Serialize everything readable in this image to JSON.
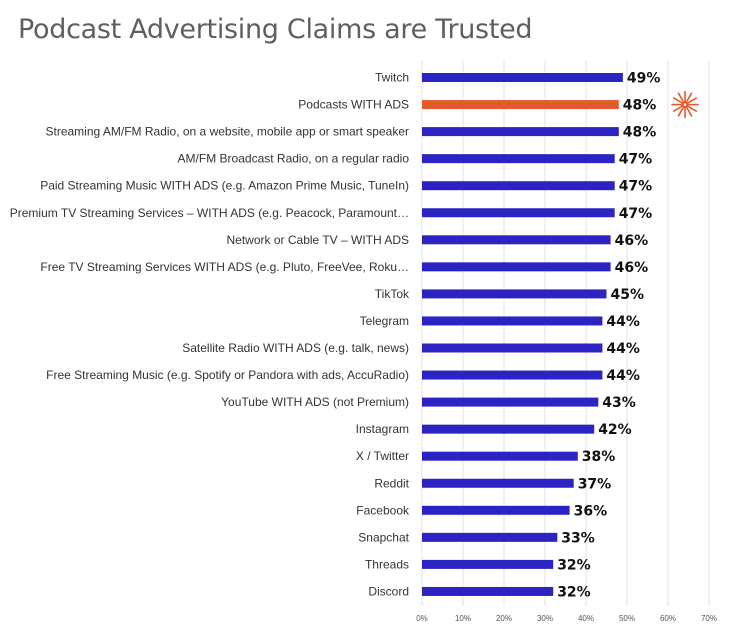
{
  "chart_data": {
    "type": "bar",
    "orientation": "horizontal",
    "title": "Podcast Advertising Claims are Trusted",
    "categories": [
      "Twitch",
      "Podcasts WITH ADS",
      "Streaming AM/FM Radio, on a website, mobile app or smart speaker",
      "AM/FM Broadcast Radio, on a regular radio",
      "Paid Streaming Music WITH ADS (e.g. Amazon Prime Music, TuneIn)",
      "Premium TV Streaming Services – WITH ADS (e.g. Peacock, Paramount…",
      "Network or Cable TV – WITH ADS",
      "Free TV Streaming Services WITH ADS (e.g. Pluto, FreeVee, Roku…",
      "TikTok",
      "Telegram",
      "Satellite Radio WITH ADS (e.g. talk, news)",
      "Free Streaming Music (e.g. Spotify or Pandora with ads, AccuRadio)",
      "YouTube WITH ADS (not Premium)",
      "Instagram",
      "X / Twitter",
      "Reddit",
      "Facebook",
      "Snapchat",
      "Threads",
      "Discord"
    ],
    "values": [
      49,
      48,
      48,
      47,
      47,
      47,
      46,
      46,
      45,
      44,
      44,
      44,
      43,
      42,
      38,
      37,
      36,
      33,
      32,
      32
    ],
    "value_labels": [
      "49%",
      "48%",
      "48%",
      "47%",
      "47%",
      "47%",
      "46%",
      "46%",
      "45%",
      "44%",
      "44%",
      "44%",
      "43%",
      "42%",
      "38%",
      "37%",
      "36%",
      "33%",
      "32%",
      "32%"
    ],
    "xlim": [
      0,
      70
    ],
    "xticks": [
      "0%",
      "10%",
      "20%",
      "30%",
      "40%",
      "50%",
      "60%",
      "70%"
    ],
    "grid": true,
    "highlight_index": 1,
    "colors": {
      "bar": "#2c24c2",
      "highlight": "#e25a2c",
      "highlight_label": "#e25a2c",
      "burst": "#e25a2c"
    }
  }
}
